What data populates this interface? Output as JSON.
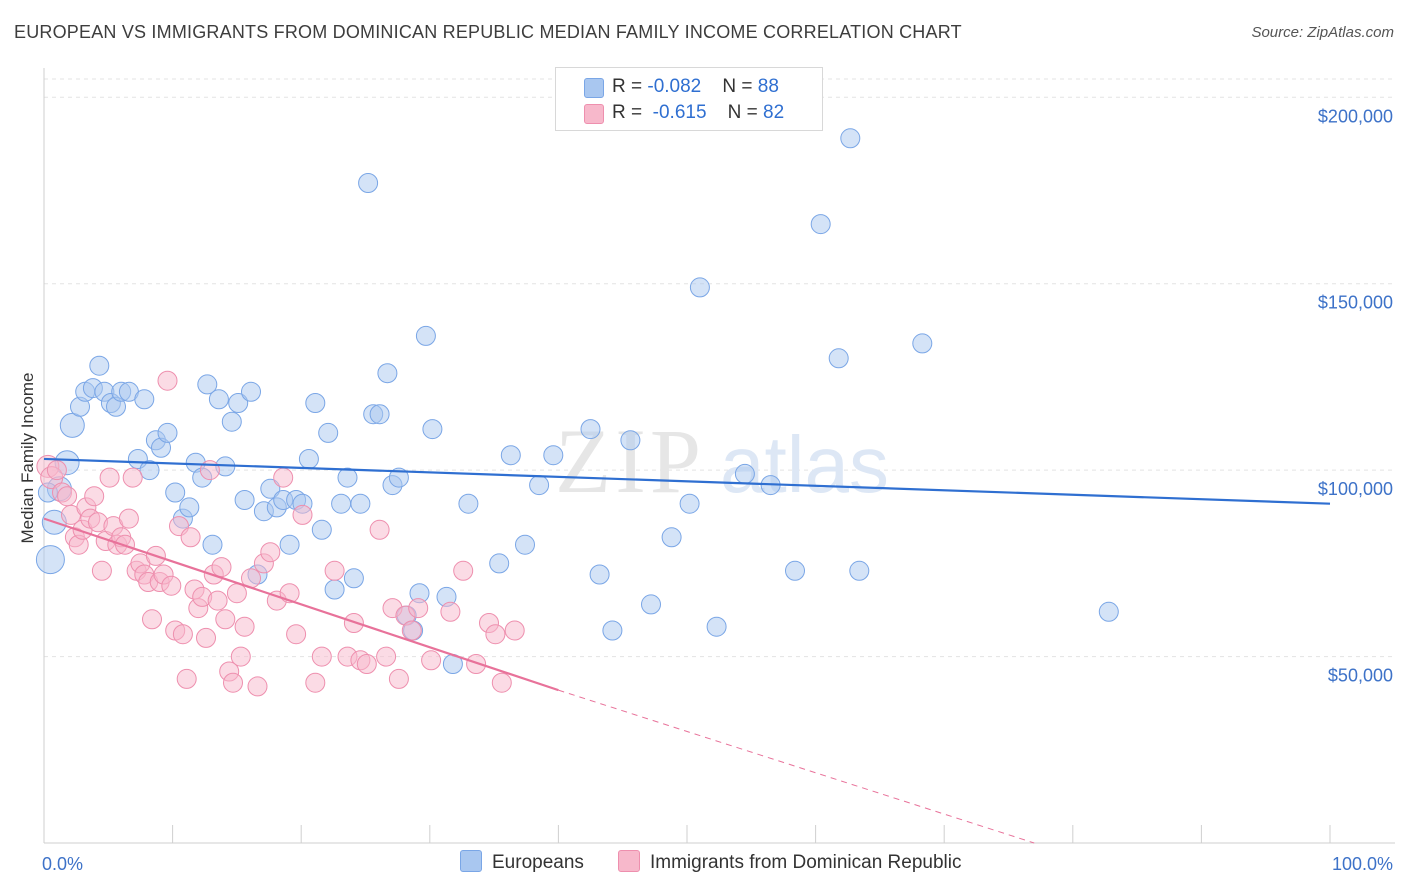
{
  "title": "EUROPEAN VS IMMIGRANTS FROM DOMINICAN REPUBLIC MEDIAN FAMILY INCOME CORRELATION CHART",
  "source": "Source: ZipAtlas.com",
  "watermark": {
    "zip": "ZIP",
    "atlas": "atlas"
  },
  "legend": {
    "rows": [
      {
        "r_label": "R = ",
        "r_value": "-0.082",
        "n_label": "N = ",
        "n_value": "88",
        "color": "#a9c7f0",
        "stroke": "#7aa6e6"
      },
      {
        "r_label": "R = ",
        "r_value": "-0.615",
        "n_label": "N = ",
        "n_value": "82",
        "color": "#f7b8cb",
        "stroke": "#ee8fae"
      }
    ]
  },
  "bottom_legend": [
    {
      "label": "Europeans",
      "color": "#a9c7f0",
      "stroke": "#7aa6e6"
    },
    {
      "label": "Immigrants from Dominican Republic",
      "color": "#f7b8cb",
      "stroke": "#ee8fae"
    }
  ],
  "chart_data": {
    "type": "scatter",
    "title": "EUROPEAN VS IMMIGRANTS FROM DOMINICAN REPUBLIC MEDIAN FAMILY INCOME CORRELATION CHART",
    "xlabel": "",
    "ylabel": "Median Family Income",
    "xlim": [
      0,
      100
    ],
    "ylim": [
      0,
      210000
    ],
    "x_tick_labels": [
      "0.0%",
      "100.0%"
    ],
    "y_ticks": [
      50000,
      100000,
      150000,
      200000
    ],
    "y_tick_labels": [
      "$50,000",
      "$100,000",
      "$150,000",
      "$200,000"
    ],
    "grid": true,
    "legend_position": "top-center",
    "series": [
      {
        "name": "Europeans",
        "color": "#a9c7f0",
        "stroke": "#7aa6e6",
        "line_color": "#2f6fd1",
        "trend": {
          "x0": 0,
          "y0": 103000,
          "x1": 100,
          "y1": 91000
        },
        "points": [
          [
            0.5,
            76000
          ],
          [
            0.8,
            86000
          ],
          [
            1.2,
            95000
          ],
          [
            1.8,
            102000
          ],
          [
            2.2,
            112000
          ],
          [
            2.8,
            117000
          ],
          [
            3.2,
            121000
          ],
          [
            3.8,
            122000
          ],
          [
            4.3,
            128000
          ],
          [
            4.7,
            121000
          ],
          [
            5.2,
            118000
          ],
          [
            5.6,
            117000
          ],
          [
            6.0,
            121000
          ],
          [
            6.6,
            121000
          ],
          [
            7.3,
            103000
          ],
          [
            7.8,
            119000
          ],
          [
            8.2,
            100000
          ],
          [
            8.7,
            108000
          ],
          [
            9.1,
            106000
          ],
          [
            9.6,
            110000
          ],
          [
            10.2,
            94000
          ],
          [
            10.8,
            87000
          ],
          [
            11.3,
            90000
          ],
          [
            11.8,
            102000
          ],
          [
            12.3,
            98000
          ],
          [
            12.7,
            123000
          ],
          [
            13.1,
            80000
          ],
          [
            13.6,
            119000
          ],
          [
            14.1,
            101000
          ],
          [
            14.6,
            113000
          ],
          [
            15.1,
            118000
          ],
          [
            15.6,
            92000
          ],
          [
            16.1,
            121000
          ],
          [
            16.6,
            72000
          ],
          [
            17.1,
            89000
          ],
          [
            17.6,
            95000
          ],
          [
            18.1,
            90000
          ],
          [
            18.6,
            92000
          ],
          [
            19.1,
            80000
          ],
          [
            19.6,
            92000
          ],
          [
            20.1,
            91000
          ],
          [
            20.6,
            103000
          ],
          [
            21.1,
            118000
          ],
          [
            21.6,
            84000
          ],
          [
            22.1,
            110000
          ],
          [
            22.6,
            68000
          ],
          [
            23.1,
            91000
          ],
          [
            23.6,
            98000
          ],
          [
            24.1,
            71000
          ],
          [
            24.6,
            91000
          ],
          [
            25.2,
            177000
          ],
          [
            25.6,
            115000
          ],
          [
            26.1,
            115000
          ],
          [
            26.7,
            126000
          ],
          [
            27.1,
            96000
          ],
          [
            27.6,
            98000
          ],
          [
            28.2,
            61000
          ],
          [
            28.7,
            57000
          ],
          [
            29.2,
            67000
          ],
          [
            29.7,
            136000
          ],
          [
            30.2,
            111000
          ],
          [
            31.3,
            66000
          ],
          [
            31.8,
            48000
          ],
          [
            33.0,
            91000
          ],
          [
            35.4,
            75000
          ],
          [
            36.3,
            104000
          ],
          [
            37.4,
            80000
          ],
          [
            38.5,
            96000
          ],
          [
            39.6,
            104000
          ],
          [
            42.5,
            111000
          ],
          [
            43.2,
            72000
          ],
          [
            44.2,
            57000
          ],
          [
            45.6,
            108000
          ],
          [
            47.2,
            64000
          ],
          [
            48.8,
            82000
          ],
          [
            50.2,
            91000
          ],
          [
            51.0,
            149000
          ],
          [
            52.3,
            58000
          ],
          [
            54.5,
            99000
          ],
          [
            56.5,
            96000
          ],
          [
            58.4,
            73000
          ],
          [
            60.4,
            166000
          ],
          [
            61.8,
            130000
          ],
          [
            62.7,
            189000
          ],
          [
            63.4,
            73000
          ],
          [
            68.3,
            134000
          ],
          [
            82.8,
            62000
          ],
          [
            0.3,
            94000
          ]
        ]
      },
      {
        "name": "Immigrants from Dominican Republic",
        "color": "#f7b8cb",
        "stroke": "#ee8fae",
        "line_color": "#e8729a",
        "trend": {
          "x0": 0,
          "y0": 87000,
          "x1": 40,
          "y1": 41000
        },
        "trend_dashed": {
          "x0": 40,
          "y0": 41000,
          "x1": 77,
          "y1": 0
        },
        "points": [
          [
            0.3,
            101000
          ],
          [
            0.6,
            98000
          ],
          [
            1.0,
            100000
          ],
          [
            1.4,
            94000
          ],
          [
            1.8,
            93000
          ],
          [
            2.1,
            88000
          ],
          [
            2.4,
            82000
          ],
          [
            2.7,
            80000
          ],
          [
            3.0,
            84000
          ],
          [
            3.3,
            90000
          ],
          [
            3.6,
            87000
          ],
          [
            3.9,
            93000
          ],
          [
            4.2,
            86000
          ],
          [
            4.5,
            73000
          ],
          [
            4.8,
            81000
          ],
          [
            5.1,
            98000
          ],
          [
            5.4,
            85000
          ],
          [
            5.7,
            80000
          ],
          [
            6.0,
            82000
          ],
          [
            6.3,
            80000
          ],
          [
            6.6,
            87000
          ],
          [
            6.9,
            98000
          ],
          [
            7.2,
            73000
          ],
          [
            7.5,
            75000
          ],
          [
            7.8,
            72000
          ],
          [
            8.1,
            70000
          ],
          [
            8.4,
            60000
          ],
          [
            8.7,
            77000
          ],
          [
            9.0,
            70000
          ],
          [
            9.3,
            72000
          ],
          [
            9.6,
            124000
          ],
          [
            9.9,
            69000
          ],
          [
            10.2,
            57000
          ],
          [
            10.5,
            85000
          ],
          [
            10.8,
            56000
          ],
          [
            11.1,
            44000
          ],
          [
            11.4,
            82000
          ],
          [
            11.7,
            68000
          ],
          [
            12.0,
            63000
          ],
          [
            12.3,
            66000
          ],
          [
            12.6,
            55000
          ],
          [
            12.9,
            100000
          ],
          [
            13.2,
            72000
          ],
          [
            13.5,
            65000
          ],
          [
            13.8,
            74000
          ],
          [
            14.1,
            60000
          ],
          [
            14.4,
            46000
          ],
          [
            14.7,
            43000
          ],
          [
            15.0,
            67000
          ],
          [
            15.3,
            50000
          ],
          [
            15.6,
            58000
          ],
          [
            16.1,
            71000
          ],
          [
            16.6,
            42000
          ],
          [
            17.1,
            75000
          ],
          [
            17.6,
            78000
          ],
          [
            18.1,
            65000
          ],
          [
            18.6,
            98000
          ],
          [
            19.1,
            67000
          ],
          [
            19.6,
            56000
          ],
          [
            20.1,
            88000
          ],
          [
            21.1,
            43000
          ],
          [
            21.6,
            50000
          ],
          [
            22.6,
            73000
          ],
          [
            23.6,
            50000
          ],
          [
            24.1,
            59000
          ],
          [
            24.6,
            49000
          ],
          [
            25.1,
            48000
          ],
          [
            26.1,
            84000
          ],
          [
            26.6,
            50000
          ],
          [
            27.1,
            63000
          ],
          [
            27.6,
            44000
          ],
          [
            28.1,
            61000
          ],
          [
            28.6,
            57000
          ],
          [
            29.1,
            63000
          ],
          [
            30.1,
            49000
          ],
          [
            31.6,
            62000
          ],
          [
            32.6,
            73000
          ],
          [
            33.6,
            48000
          ],
          [
            34.6,
            59000
          ],
          [
            35.1,
            56000
          ],
          [
            35.6,
            43000
          ],
          [
            36.6,
            57000
          ]
        ]
      }
    ]
  }
}
